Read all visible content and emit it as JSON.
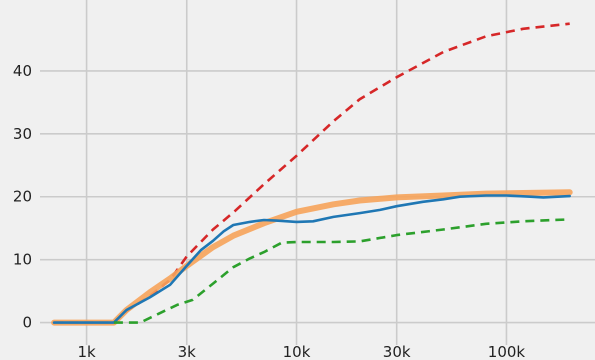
{
  "chart_data": {
    "type": "line",
    "title": "",
    "xlabel": "",
    "ylabel": "",
    "x_scale": "log",
    "xlim": [
      600,
      250000
    ],
    "ylim": [
      -1.5,
      50
    ],
    "grid": true,
    "x_ticks": [
      1000,
      3000,
      10000,
      30000,
      100000
    ],
    "x_tick_labels": [
      "1k",
      "3k",
      "10k",
      "30k",
      "100k"
    ],
    "y_ticks": [
      0,
      10,
      20,
      30,
      40
    ],
    "y_tick_labels": [
      "0",
      "10",
      "20",
      "30",
      "40"
    ],
    "series": [
      {
        "color": "#d62728",
        "style": "dashed",
        "points": [
          [
            700,
            0
          ],
          [
            1000,
            0
          ],
          [
            1350,
            0
          ],
          [
            1550,
            1.8
          ],
          [
            2000,
            4.2
          ],
          [
            2500,
            6.8
          ],
          [
            3000,
            10.5
          ],
          [
            4000,
            14.8
          ],
          [
            5000,
            17.5
          ],
          [
            7000,
            22
          ],
          [
            10000,
            26.5
          ],
          [
            15000,
            32
          ],
          [
            20000,
            35.5
          ],
          [
            30000,
            39
          ],
          [
            50000,
            43
          ],
          [
            80000,
            45.5
          ],
          [
            120000,
            46.7
          ],
          [
            200000,
            47.5
          ]
        ]
      },
      {
        "color": "#f6a35a",
        "style": "solid-thick",
        "points": [
          [
            700,
            0
          ],
          [
            1000,
            0
          ],
          [
            1350,
            0
          ],
          [
            1550,
            2
          ],
          [
            2000,
            4.8
          ],
          [
            2500,
            7
          ],
          [
            3000,
            9
          ],
          [
            4000,
            12
          ],
          [
            5000,
            13.8
          ],
          [
            7000,
            15.8
          ],
          [
            10000,
            17.6
          ],
          [
            15000,
            18.8
          ],
          [
            20000,
            19.4
          ],
          [
            30000,
            19.9
          ],
          [
            50000,
            20.2
          ],
          [
            80000,
            20.5
          ],
          [
            120000,
            20.6
          ],
          [
            200000,
            20.7
          ]
        ]
      },
      {
        "color": "#1f77b4",
        "style": "solid",
        "points": [
          [
            700,
            0
          ],
          [
            1000,
            0
          ],
          [
            1350,
            0
          ],
          [
            1550,
            2
          ],
          [
            2000,
            4
          ],
          [
            2500,
            6
          ],
          [
            3000,
            9
          ],
          [
            3500,
            11.5
          ],
          [
            4000,
            13
          ],
          [
            4500,
            14.5
          ],
          [
            5000,
            15.5
          ],
          [
            6000,
            16
          ],
          [
            7000,
            16.3
          ],
          [
            8000,
            16.2
          ],
          [
            10000,
            16
          ],
          [
            12000,
            16.1
          ],
          [
            15000,
            16.8
          ],
          [
            20000,
            17.4
          ],
          [
            25000,
            17.9
          ],
          [
            30000,
            18.5
          ],
          [
            40000,
            19.2
          ],
          [
            50000,
            19.6
          ],
          [
            60000,
            20
          ],
          [
            80000,
            20.2
          ],
          [
            100000,
            20.2
          ],
          [
            130000,
            20
          ],
          [
            150000,
            19.9
          ],
          [
            200000,
            20.1
          ]
        ]
      },
      {
        "color": "#2ca02c",
        "style": "dashed",
        "points": [
          [
            1350,
            0
          ],
          [
            1800,
            0
          ],
          [
            2200,
            1.4
          ],
          [
            2700,
            2.8
          ],
          [
            3200,
            3.6
          ],
          [
            4000,
            6.2
          ],
          [
            5000,
            8.8
          ],
          [
            6000,
            10.2
          ],
          [
            7000,
            11.2
          ],
          [
            8500,
            12.7
          ],
          [
            10000,
            12.8
          ],
          [
            15000,
            12.8
          ],
          [
            20000,
            12.9
          ],
          [
            30000,
            13.9
          ],
          [
            50000,
            14.8
          ],
          [
            80000,
            15.7
          ],
          [
            120000,
            16.1
          ],
          [
            200000,
            16.4
          ]
        ]
      }
    ]
  }
}
